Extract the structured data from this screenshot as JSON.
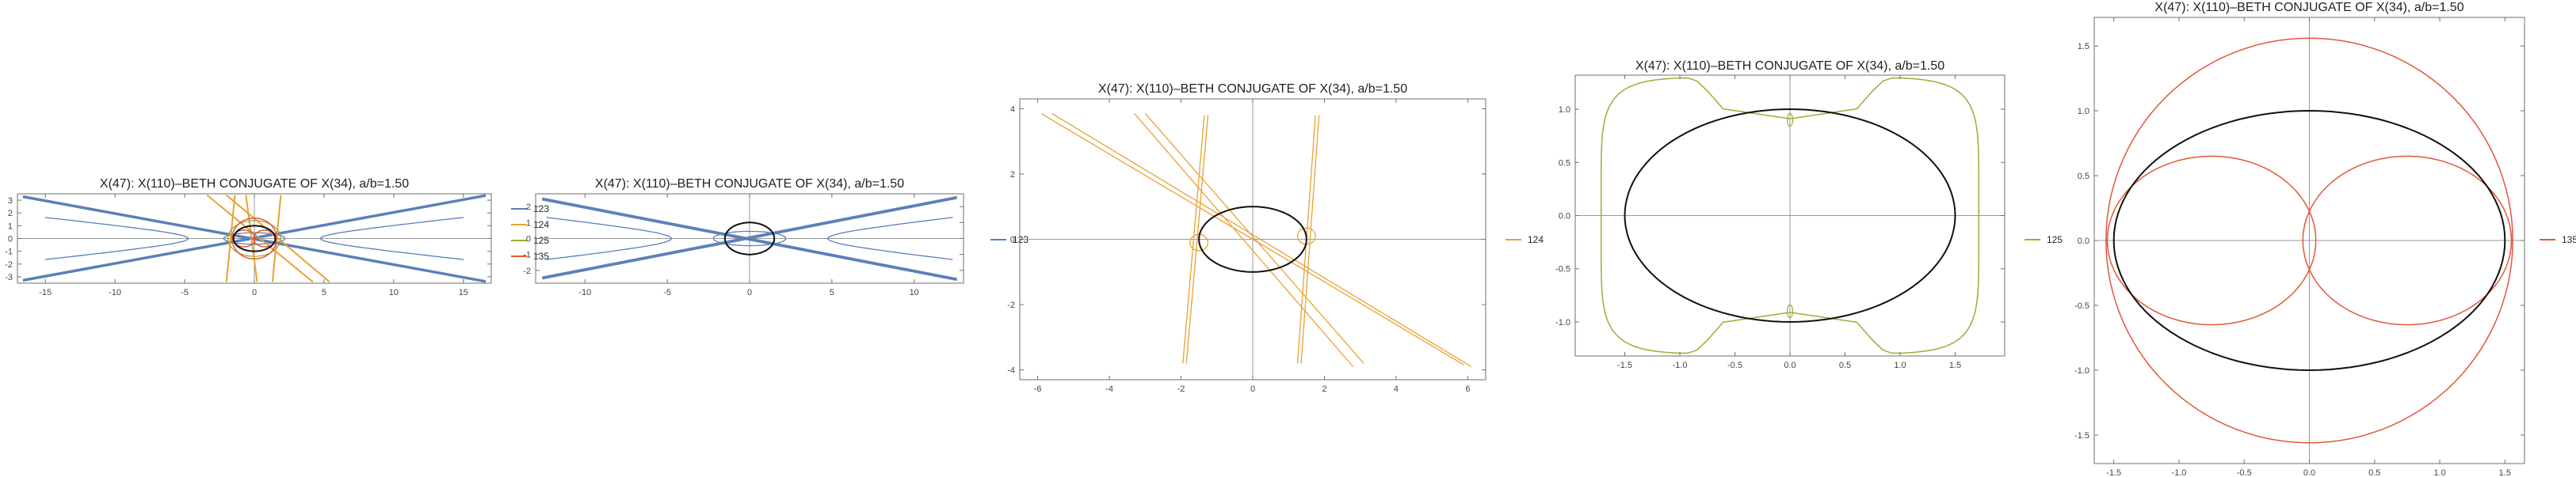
{
  "colors": {
    "s123": "#5b7fb8",
    "s124": "#e8a234",
    "s125": "#9aae35",
    "s135": "#e2573a",
    "ellipse": "#111111",
    "axis": "#9a9a9a",
    "frame": "#6f6f6f"
  },
  "chart_data": [
    {
      "type": "line",
      "title": "X(47): X(110)–BETH CONJUGATE OF X(34), a/b=1.50",
      "xlim": [
        -17,
        17
      ],
      "ylim": [
        -3.5,
        3.5
      ],
      "xticks": [
        "-15",
        "-10",
        "-5",
        "0",
        "5",
        "10",
        "15"
      ],
      "yticks": [
        "-3",
        "-2",
        "-1",
        "0",
        "1",
        "2",
        "3"
      ],
      "legend": [
        "123",
        "124",
        "125",
        "135"
      ],
      "legend_position": "right",
      "series": [
        {
          "name": "123",
          "curve": "hyperbolic cubic, asymptotes y = ±0.2x"
        },
        {
          "name": "124",
          "curve": "line pairs through the ellipse"
        },
        {
          "name": "125",
          "curve": "closed loops around the ellipse"
        },
        {
          "name": "135",
          "curve": "circle and two inner loops"
        }
      ],
      "reference": {
        "ellipse": {
          "a": 1.5,
          "b": 1
        }
      }
    },
    {
      "type": "line",
      "title": "X(47): X(110)–BETH CONJUGATE OF X(34), a/b=1.50",
      "xlim": [
        -13,
        13
      ],
      "ylim": [
        -2.8,
        2.8
      ],
      "xticks": [
        "-10",
        "-5",
        "0",
        "5",
        "10"
      ],
      "yticks": [
        "-2",
        "-1",
        "0",
        "1",
        "2"
      ],
      "legend": [
        "123"
      ],
      "legend_position": "right",
      "series": [
        {
          "name": "123",
          "curve": "hyperbolic cubic, asymptotes y = ±0.2x"
        }
      ],
      "reference": {
        "ellipse": {
          "a": 1.5,
          "b": 1
        }
      }
    },
    {
      "type": "line",
      "title": "X(47): X(110)–BETH CONJUGATE OF X(34), a/b=1.50",
      "xlim": [
        -6.5,
        6.5
      ],
      "ylim": [
        -4.3,
        4.3
      ],
      "xticks": [
        "-6",
        "-4",
        "-2",
        "0",
        "2",
        "4",
        "6"
      ],
      "yticks": [
        "-4",
        "-2",
        "0",
        "2",
        "4"
      ],
      "legend": [
        "124"
      ],
      "legend_position": "right",
      "series": [
        {
          "name": "124",
          "curve": "two diagonal line pairs of slope −1 and two near-vertical pairs at x ≈ ±1.6"
        }
      ],
      "reference": {
        "ellipse": {
          "a": 1.5,
          "b": 1
        }
      }
    },
    {
      "type": "line",
      "title": "X(47): X(110)–BETH CONJUGATE OF X(34), a/b=1.50",
      "xlim": [
        -1.95,
        1.95
      ],
      "ylim": [
        -1.32,
        1.32
      ],
      "xticks": [
        "-1.5",
        "-1.0",
        "-0.5",
        "0.0",
        "0.5",
        "1.0",
        "1.5"
      ],
      "yticks": [
        "-1.0",
        "-0.5",
        "0.0",
        "0.5",
        "1.0"
      ],
      "legend": [
        "125"
      ],
      "legend_position": "right",
      "series": [
        {
          "name": "125",
          "curve": "closed loop, x ∈ [-1.75, 1.75], y ∈ [-1.3, 1.3], cusps at (0, ±0.9)"
        }
      ],
      "reference": {
        "ellipse": {
          "a": 1.5,
          "b": 1
        }
      }
    },
    {
      "type": "line",
      "title": "X(47): X(110)–BETH CONJUGATE OF X(34), a/b=1.50",
      "xlim": [
        -1.65,
        1.65
      ],
      "ylim": [
        -1.72,
        1.72
      ],
      "xticks": [
        "-1.5",
        "-1.0",
        "-0.5",
        "0.0",
        "0.5",
        "1.0",
        "1.5"
      ],
      "yticks": [
        "-1.5",
        "-1.0",
        "-0.5",
        "0.0",
        "0.5",
        "1.0",
        "1.5"
      ],
      "legend": [
        "135"
      ],
      "legend_position": "right",
      "series": [
        {
          "name": "135",
          "curve": "circle r ≈ 1.56 and two inner loops centred at x ≈ ±0.75"
        }
      ],
      "reference": {
        "ellipse": {
          "a": 1.5,
          "b": 1
        }
      }
    }
  ]
}
